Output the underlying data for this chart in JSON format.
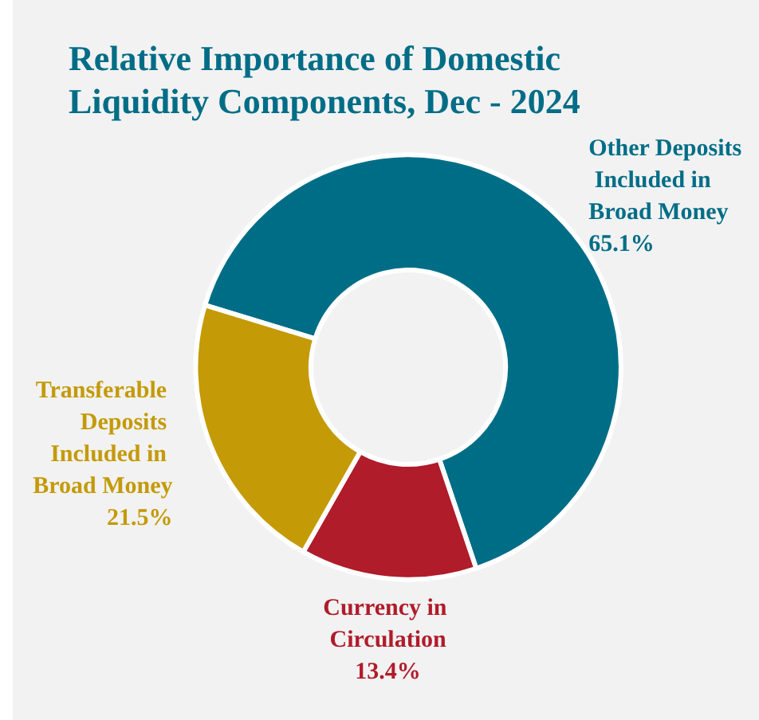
{
  "chart_data": {
    "type": "donut",
    "title": "Relative Importance of Domestic Liquidity Components, Dec - 2024",
    "categories": [
      "Other Deposits Included in Broad Money",
      "Currency in Circulation",
      "Transferable Deposits Included in Broad Money"
    ],
    "values": [
      65.1,
      13.4,
      21.5
    ],
    "value_labels": [
      "65.1%",
      "13.4%",
      "21.5%"
    ],
    "colors": [
      "#006d87",
      "#b01c2a",
      "#c49a06"
    ],
    "legend": false
  }
}
